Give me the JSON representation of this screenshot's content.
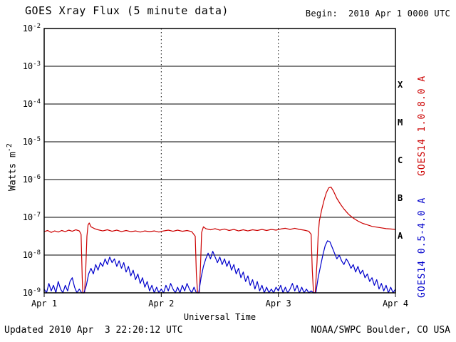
{
  "header": {
    "title": "GOES Xray Flux (5 minute data)",
    "begin_label": "Begin:  2010 Apr 1 0000 UTC"
  },
  "footer": {
    "updated": "Updated 2010 Apr  3 22:20:12 UTC",
    "credit": "NOAA/SWPC Boulder, CO USA"
  },
  "chart_data": {
    "type": "line",
    "title": "GOES Xray Flux (5 minute data)",
    "xlabel": "Universal Time",
    "ylabel": "Watts m^-2",
    "ylabel_base": "Watts m",
    "ylabel_exp": "-2",
    "x_range_days": [
      1,
      4
    ],
    "x_tick_labels": [
      "Apr 1",
      "Apr 2",
      "Apr 3",
      "Apr 4"
    ],
    "y_scale": "log10",
    "y_log_range": [
      -9,
      -2
    ],
    "y_tick_base": "10",
    "y_tick_exponents": [
      -2,
      -3,
      -4,
      -5,
      -6,
      -7,
      -8,
      -9
    ],
    "flare_class_labels": [
      "X",
      "M",
      "C",
      "B",
      "A"
    ],
    "grid": {
      "horizontal": "solid line at each decade",
      "vertical": "dotted line at each interior day boundary",
      "legend_position": "right-rotated"
    },
    "series": [
      {
        "name": "GOES14 1.0-8.0 A",
        "color": "#cc0000",
        "points_format": "[day_of_april_2010, log10_flux_watts_m2]",
        "points": [
          [
            1.0,
            -7.38
          ],
          [
            1.03,
            -7.35
          ],
          [
            1.06,
            -7.4
          ],
          [
            1.09,
            -7.36
          ],
          [
            1.12,
            -7.39
          ],
          [
            1.15,
            -7.35
          ],
          [
            1.18,
            -7.38
          ],
          [
            1.21,
            -7.34
          ],
          [
            1.24,
            -7.37
          ],
          [
            1.27,
            -7.33
          ],
          [
            1.3,
            -7.36
          ],
          [
            1.315,
            -7.45
          ],
          [
            1.325,
            -8.6
          ],
          [
            1.33,
            -9.3
          ],
          [
            1.345,
            -9.3
          ],
          [
            1.355,
            -8.4
          ],
          [
            1.365,
            -7.5
          ],
          [
            1.375,
            -7.2
          ],
          [
            1.385,
            -7.15
          ],
          [
            1.4,
            -7.25
          ],
          [
            1.43,
            -7.3
          ],
          [
            1.46,
            -7.33
          ],
          [
            1.5,
            -7.36
          ],
          [
            1.54,
            -7.33
          ],
          [
            1.58,
            -7.37
          ],
          [
            1.62,
            -7.34
          ],
          [
            1.66,
            -7.38
          ],
          [
            1.7,
            -7.35
          ],
          [
            1.74,
            -7.38
          ],
          [
            1.78,
            -7.36
          ],
          [
            1.82,
            -7.39
          ],
          [
            1.86,
            -7.36
          ],
          [
            1.9,
            -7.38
          ],
          [
            1.94,
            -7.36
          ],
          [
            1.98,
            -7.39
          ],
          [
            2.02,
            -7.36
          ],
          [
            2.06,
            -7.34
          ],
          [
            2.1,
            -7.37
          ],
          [
            2.14,
            -7.34
          ],
          [
            2.18,
            -7.37
          ],
          [
            2.22,
            -7.35
          ],
          [
            2.26,
            -7.38
          ],
          [
            2.29,
            -7.5
          ],
          [
            2.3,
            -8.5
          ],
          [
            2.31,
            -9.3
          ],
          [
            2.325,
            -9.3
          ],
          [
            2.335,
            -8.3
          ],
          [
            2.345,
            -7.4
          ],
          [
            2.36,
            -7.25
          ],
          [
            2.38,
            -7.3
          ],
          [
            2.42,
            -7.33
          ],
          [
            2.46,
            -7.3
          ],
          [
            2.5,
            -7.34
          ],
          [
            2.54,
            -7.31
          ],
          [
            2.58,
            -7.35
          ],
          [
            2.62,
            -7.32
          ],
          [
            2.66,
            -7.36
          ],
          [
            2.7,
            -7.33
          ],
          [
            2.74,
            -7.36
          ],
          [
            2.78,
            -7.33
          ],
          [
            2.82,
            -7.35
          ],
          [
            2.86,
            -7.32
          ],
          [
            2.9,
            -7.35
          ],
          [
            2.94,
            -7.32
          ],
          [
            2.98,
            -7.34
          ],
          [
            3.02,
            -7.31
          ],
          [
            3.06,
            -7.29
          ],
          [
            3.1,
            -7.32
          ],
          [
            3.14,
            -7.29
          ],
          [
            3.18,
            -7.32
          ],
          [
            3.22,
            -7.34
          ],
          [
            3.26,
            -7.37
          ],
          [
            3.28,
            -7.45
          ],
          [
            3.29,
            -8.4
          ],
          [
            3.3,
            -9.3
          ],
          [
            3.315,
            -9.3
          ],
          [
            3.33,
            -8.2
          ],
          [
            3.34,
            -7.5
          ],
          [
            3.35,
            -7.1
          ],
          [
            3.37,
            -6.8
          ],
          [
            3.39,
            -6.55
          ],
          [
            3.41,
            -6.35
          ],
          [
            3.43,
            -6.22
          ],
          [
            3.45,
            -6.2
          ],
          [
            3.47,
            -6.3
          ],
          [
            3.5,
            -6.5
          ],
          [
            3.53,
            -6.65
          ],
          [
            3.56,
            -6.78
          ],
          [
            3.6,
            -6.92
          ],
          [
            3.64,
            -7.02
          ],
          [
            3.68,
            -7.1
          ],
          [
            3.72,
            -7.16
          ],
          [
            3.76,
            -7.2
          ],
          [
            3.8,
            -7.24
          ],
          [
            3.84,
            -7.26
          ],
          [
            3.88,
            -7.28
          ],
          [
            3.92,
            -7.3
          ],
          [
            3.96,
            -7.31
          ],
          [
            4.0,
            -7.32
          ]
        ]
      },
      {
        "name": "GOES14 0.5-4.0 A",
        "color": "#0000cc",
        "points_format": "[day_of_april_2010, log10_flux_watts_m2]",
        "points": [
          [
            1.0,
            -8.9
          ],
          [
            1.02,
            -9.0
          ],
          [
            1.04,
            -8.75
          ],
          [
            1.06,
            -8.95
          ],
          [
            1.08,
            -8.8
          ],
          [
            1.1,
            -9.0
          ],
          [
            1.12,
            -8.7
          ],
          [
            1.14,
            -8.9
          ],
          [
            1.16,
            -9.05
          ],
          [
            1.18,
            -8.8
          ],
          [
            1.2,
            -8.95
          ],
          [
            1.22,
            -8.7
          ],
          [
            1.24,
            -8.6
          ],
          [
            1.26,
            -8.85
          ],
          [
            1.28,
            -9.0
          ],
          [
            1.3,
            -8.9
          ],
          [
            1.32,
            -9.3
          ],
          [
            1.34,
            -9.3
          ],
          [
            1.36,
            -8.8
          ],
          [
            1.38,
            -8.5
          ],
          [
            1.4,
            -8.35
          ],
          [
            1.42,
            -8.5
          ],
          [
            1.44,
            -8.25
          ],
          [
            1.46,
            -8.4
          ],
          [
            1.48,
            -8.2
          ],
          [
            1.5,
            -8.3
          ],
          [
            1.52,
            -8.1
          ],
          [
            1.54,
            -8.25
          ],
          [
            1.56,
            -8.05
          ],
          [
            1.58,
            -8.2
          ],
          [
            1.6,
            -8.1
          ],
          [
            1.62,
            -8.3
          ],
          [
            1.64,
            -8.15
          ],
          [
            1.66,
            -8.35
          ],
          [
            1.68,
            -8.2
          ],
          [
            1.7,
            -8.45
          ],
          [
            1.72,
            -8.3
          ],
          [
            1.74,
            -8.55
          ],
          [
            1.76,
            -8.4
          ],
          [
            1.78,
            -8.65
          ],
          [
            1.8,
            -8.5
          ],
          [
            1.82,
            -8.75
          ],
          [
            1.84,
            -8.6
          ],
          [
            1.86,
            -8.85
          ],
          [
            1.88,
            -8.7
          ],
          [
            1.9,
            -8.95
          ],
          [
            1.92,
            -8.8
          ],
          [
            1.94,
            -9.0
          ],
          [
            1.96,
            -8.85
          ],
          [
            1.98,
            -9.05
          ],
          [
            2.0,
            -8.9
          ],
          [
            2.02,
            -9.0
          ],
          [
            2.04,
            -8.8
          ],
          [
            2.06,
            -8.95
          ],
          [
            2.08,
            -8.75
          ],
          [
            2.1,
            -8.9
          ],
          [
            2.12,
            -9.05
          ],
          [
            2.14,
            -8.85
          ],
          [
            2.16,
            -9.0
          ],
          [
            2.18,
            -8.8
          ],
          [
            2.2,
            -8.95
          ],
          [
            2.22,
            -8.75
          ],
          [
            2.24,
            -8.9
          ],
          [
            2.26,
            -9.0
          ],
          [
            2.28,
            -8.85
          ],
          [
            2.3,
            -9.3
          ],
          [
            2.32,
            -9.3
          ],
          [
            2.34,
            -8.6
          ],
          [
            2.36,
            -8.3
          ],
          [
            2.38,
            -8.1
          ],
          [
            2.4,
            -7.95
          ],
          [
            2.42,
            -8.1
          ],
          [
            2.44,
            -7.9
          ],
          [
            2.46,
            -8.05
          ],
          [
            2.48,
            -8.2
          ],
          [
            2.5,
            -8.05
          ],
          [
            2.52,
            -8.25
          ],
          [
            2.54,
            -8.1
          ],
          [
            2.56,
            -8.3
          ],
          [
            2.58,
            -8.15
          ],
          [
            2.6,
            -8.4
          ],
          [
            2.62,
            -8.25
          ],
          [
            2.64,
            -8.5
          ],
          [
            2.66,
            -8.35
          ],
          [
            2.68,
            -8.6
          ],
          [
            2.7,
            -8.45
          ],
          [
            2.72,
            -8.7
          ],
          [
            2.74,
            -8.55
          ],
          [
            2.76,
            -8.8
          ],
          [
            2.78,
            -8.65
          ],
          [
            2.8,
            -8.9
          ],
          [
            2.82,
            -8.7
          ],
          [
            2.84,
            -8.95
          ],
          [
            2.86,
            -8.8
          ],
          [
            2.88,
            -9.0
          ],
          [
            2.9,
            -8.85
          ],
          [
            2.92,
            -9.05
          ],
          [
            2.94,
            -8.9
          ],
          [
            2.96,
            -9.0
          ],
          [
            2.98,
            -8.85
          ],
          [
            3.0,
            -8.95
          ],
          [
            3.02,
            -8.8
          ],
          [
            3.04,
            -9.0
          ],
          [
            3.06,
            -8.85
          ],
          [
            3.08,
            -9.05
          ],
          [
            3.1,
            -8.9
          ],
          [
            3.12,
            -8.75
          ],
          [
            3.14,
            -8.95
          ],
          [
            3.16,
            -8.8
          ],
          [
            3.18,
            -9.0
          ],
          [
            3.2,
            -8.85
          ],
          [
            3.22,
            -9.0
          ],
          [
            3.24,
            -8.9
          ],
          [
            3.26,
            -9.05
          ],
          [
            3.28,
            -8.95
          ],
          [
            3.3,
            -9.3
          ],
          [
            3.32,
            -9.3
          ],
          [
            3.34,
            -8.6
          ],
          [
            3.36,
            -8.3
          ],
          [
            3.38,
            -8.0
          ],
          [
            3.4,
            -7.75
          ],
          [
            3.42,
            -7.62
          ],
          [
            3.44,
            -7.65
          ],
          [
            3.46,
            -7.8
          ],
          [
            3.48,
            -7.95
          ],
          [
            3.5,
            -8.1
          ],
          [
            3.52,
            -8.0
          ],
          [
            3.54,
            -8.15
          ],
          [
            3.56,
            -8.25
          ],
          [
            3.58,
            -8.1
          ],
          [
            3.6,
            -8.2
          ],
          [
            3.62,
            -8.35
          ],
          [
            3.64,
            -8.25
          ],
          [
            3.66,
            -8.45
          ],
          [
            3.68,
            -8.3
          ],
          [
            3.7,
            -8.5
          ],
          [
            3.72,
            -8.4
          ],
          [
            3.74,
            -8.6
          ],
          [
            3.76,
            -8.5
          ],
          [
            3.78,
            -8.7
          ],
          [
            3.8,
            -8.6
          ],
          [
            3.82,
            -8.8
          ],
          [
            3.84,
            -8.65
          ],
          [
            3.86,
            -8.9
          ],
          [
            3.88,
            -8.75
          ],
          [
            3.9,
            -8.95
          ],
          [
            3.92,
            -8.8
          ],
          [
            3.94,
            -9.0
          ],
          [
            3.96,
            -8.85
          ],
          [
            3.98,
            -9.0
          ],
          [
            4.0,
            -8.9
          ]
        ]
      }
    ]
  }
}
